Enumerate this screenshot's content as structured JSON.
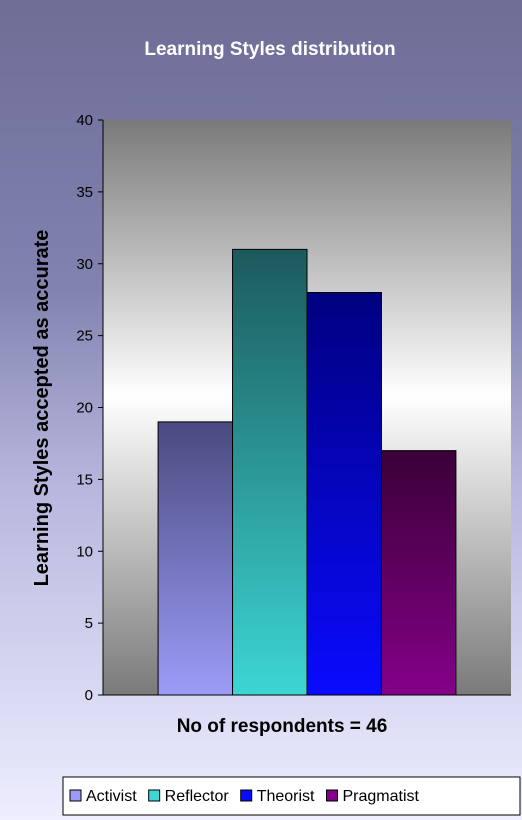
{
  "chart_data": {
    "type": "bar",
    "title": "Learning Styles distribution",
    "ylabel": "Learning Styles accepted as accurate",
    "xlabel": "No of respondents = 46",
    "ylim": [
      0,
      40
    ],
    "yticks": [
      0,
      5,
      10,
      15,
      20,
      25,
      30,
      35,
      40
    ],
    "categories": [
      "Activist",
      "Reflector",
      "Theorist",
      "Pragmatist"
    ],
    "values": [
      19,
      31,
      28,
      17
    ],
    "legend_position": "bottom",
    "grid": false,
    "colors": {
      "Activist": [
        "#4a4a80",
        "#9c9cf8"
      ],
      "Reflector": [
        "#1c5a5c",
        "#3cd6d4"
      ],
      "Theorist": [
        "#000080",
        "#0a0aff"
      ],
      "Pragmatist": [
        "#3a0038",
        "#840088"
      ],
      "plot_background_dark": "#7a7a7a",
      "plot_background_light": "#ffffff",
      "chart_background": "#8282b0"
    }
  }
}
